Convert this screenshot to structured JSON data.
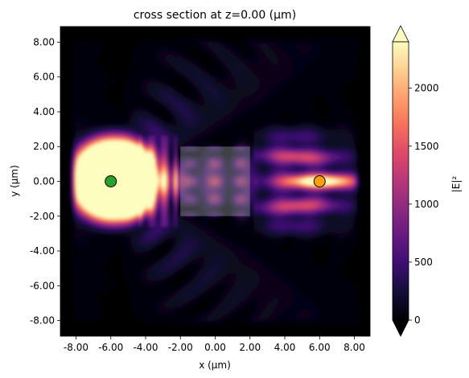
{
  "chart_data": {
    "type": "heatmap",
    "title": "cross section at z=0.00 (μm)",
    "xlabel": "x (μm)",
    "ylabel": "y (μm)",
    "xlim": [
      -8.9,
      8.9
    ],
    "ylim": [
      -8.9,
      8.9
    ],
    "x_ticks": [
      -8,
      -6,
      -4,
      -2,
      0,
      2,
      4,
      6,
      8
    ],
    "x_tick_labels": [
      "-8.00",
      "-6.00",
      "-4.00",
      "-2.00",
      "0.00",
      "2.00",
      "4.00",
      "6.00",
      "8.00"
    ],
    "y_ticks": [
      8,
      6,
      4,
      2,
      0,
      -2,
      -4,
      -6,
      -8
    ],
    "y_tick_labels": [
      "8.00",
      "6.00",
      "4.00",
      "2.00",
      "0.00",
      "-2.00",
      "-4.00",
      "-6.00",
      "-8.00"
    ],
    "colorbar": {
      "label": "|E|²",
      "colormap": "magma",
      "range": [
        0,
        2400
      ],
      "ticks": [
        0,
        500,
        1000,
        1500,
        2000
      ],
      "tick_labels": [
        "0",
        "500",
        "1000",
        "1500",
        "2000"
      ],
      "extend": "both"
    },
    "field": {
      "source_position": [
        -6.0,
        0.0
      ],
      "peak_region_x": [
        -8.0,
        -3.5
      ],
      "peak_region_y": [
        -2.3,
        2.5
      ],
      "focus_position": [
        6.0,
        0.0
      ],
      "focus_value": 1700
    },
    "structure": {
      "x": [
        -2.0,
        2.0
      ],
      "y": [
        -2.0,
        2.0
      ],
      "color": "#8e8e8e"
    },
    "markers": [
      {
        "name": "source",
        "x": -6.0,
        "y": 0.0,
        "color": "#2ca02c"
      },
      {
        "name": "monitor",
        "x": 6.0,
        "y": 0.0,
        "color": "#ff9f0e"
      }
    ],
    "legend": "none",
    "grid": false
  }
}
